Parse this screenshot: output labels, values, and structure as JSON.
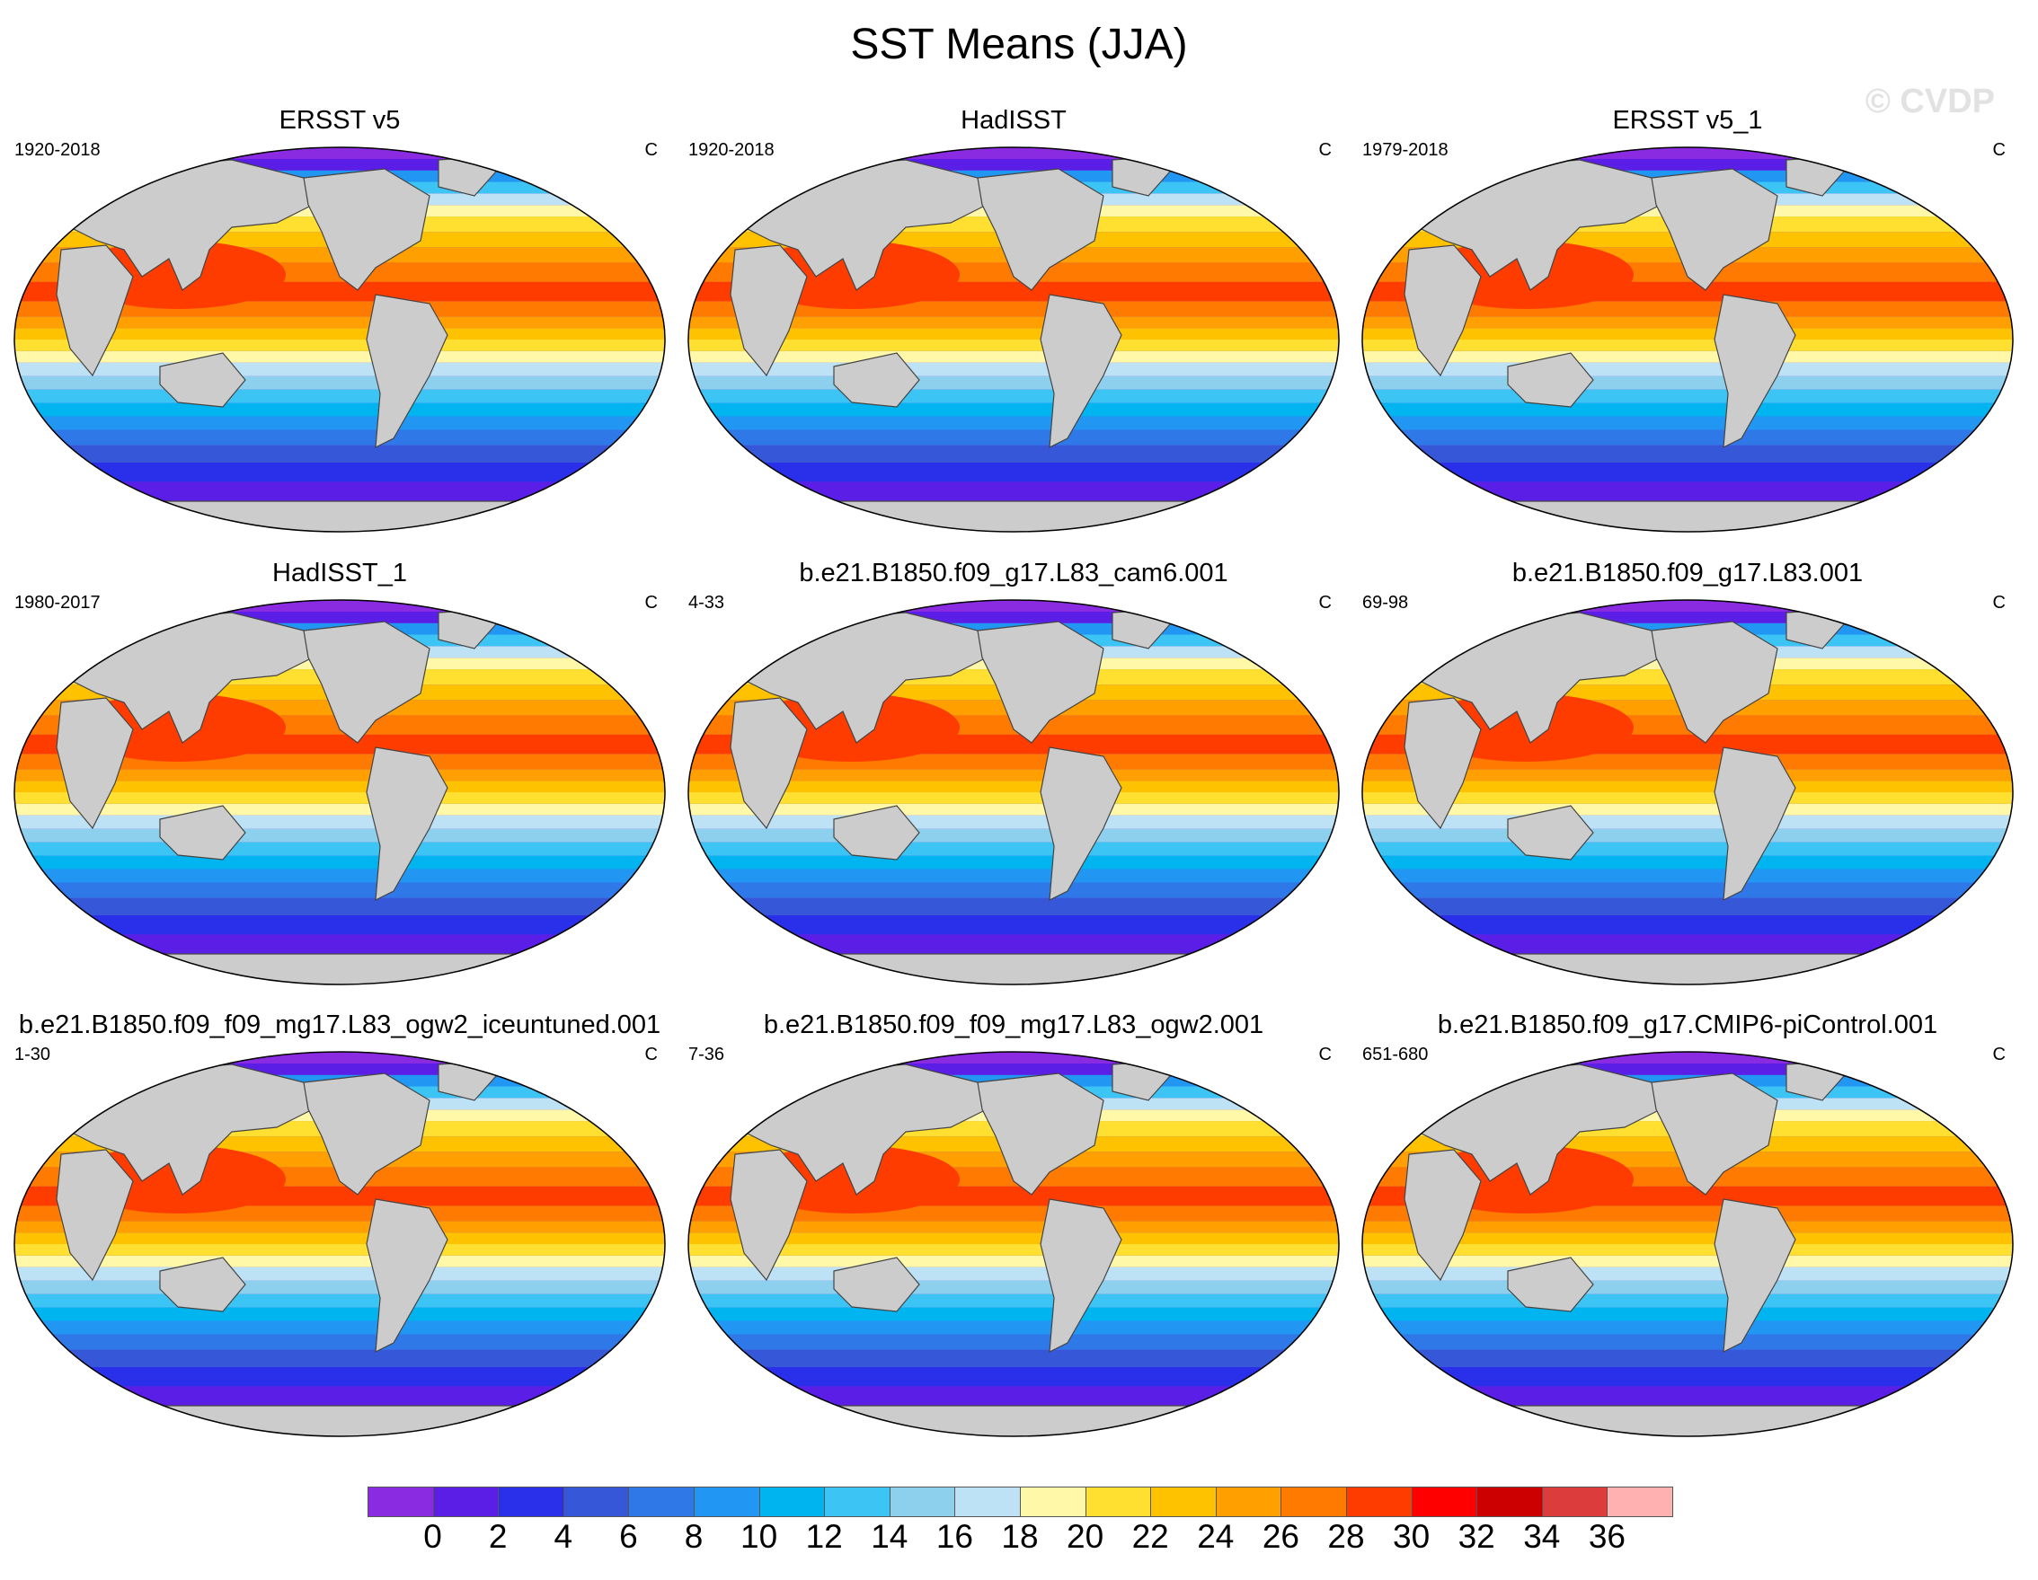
{
  "title": "SST Means (JJA)",
  "watermark": "© CVDP",
  "panels": [
    {
      "title": "ERSST v5",
      "years": "1920-2018",
      "units": "C"
    },
    {
      "title": "HadISST",
      "years": "1920-2018",
      "units": "C"
    },
    {
      "title": "ERSST v5_1",
      "years": "1979-2018",
      "units": "C"
    },
    {
      "title": "HadISST_1",
      "years": "1980-2017",
      "units": "C"
    },
    {
      "title": "b.e21.B1850.f09_g17.L83_cam6.001",
      "years": "4-33",
      "units": "C"
    },
    {
      "title": "b.e21.B1850.f09_g17.L83.001",
      "years": "69-98",
      "units": "C"
    },
    {
      "title": "b.e21.B1850.f09_f09_mg17.L83_ogw2_iceuntuned.001",
      "years": "1-30",
      "units": "C"
    },
    {
      "title": "b.e21.B1850.f09_f09_mg17.L83_ogw2.001",
      "years": "7-36",
      "units": "C"
    },
    {
      "title": "b.e21.B1850.f09_g17.CMIP6-piControl.001",
      "years": "651-680",
      "units": "C"
    }
  ],
  "colorbar": {
    "labels": [
      "0",
      "2",
      "4",
      "6",
      "8",
      "10",
      "12",
      "14",
      "16",
      "18",
      "20",
      "22",
      "24",
      "26",
      "28",
      "30",
      "32",
      "34",
      "36"
    ],
    "colors": [
      "#8a2be2",
      "#5a1ee6",
      "#2a30ea",
      "#3658d8",
      "#2f78e8",
      "#2196f3",
      "#00b4f0",
      "#3cc4f5",
      "#8dd0ee",
      "#bde2f5",
      "#fff8a8",
      "#ffe030",
      "#ffc200",
      "#ffa000",
      "#ff7a00",
      "#ff3c00",
      "#ff0000",
      "#cc0000",
      "#dd3c3c",
      "#ffb0b0"
    ]
  },
  "styles": {
    "land": "#cccccc",
    "coast": "#444444"
  }
}
